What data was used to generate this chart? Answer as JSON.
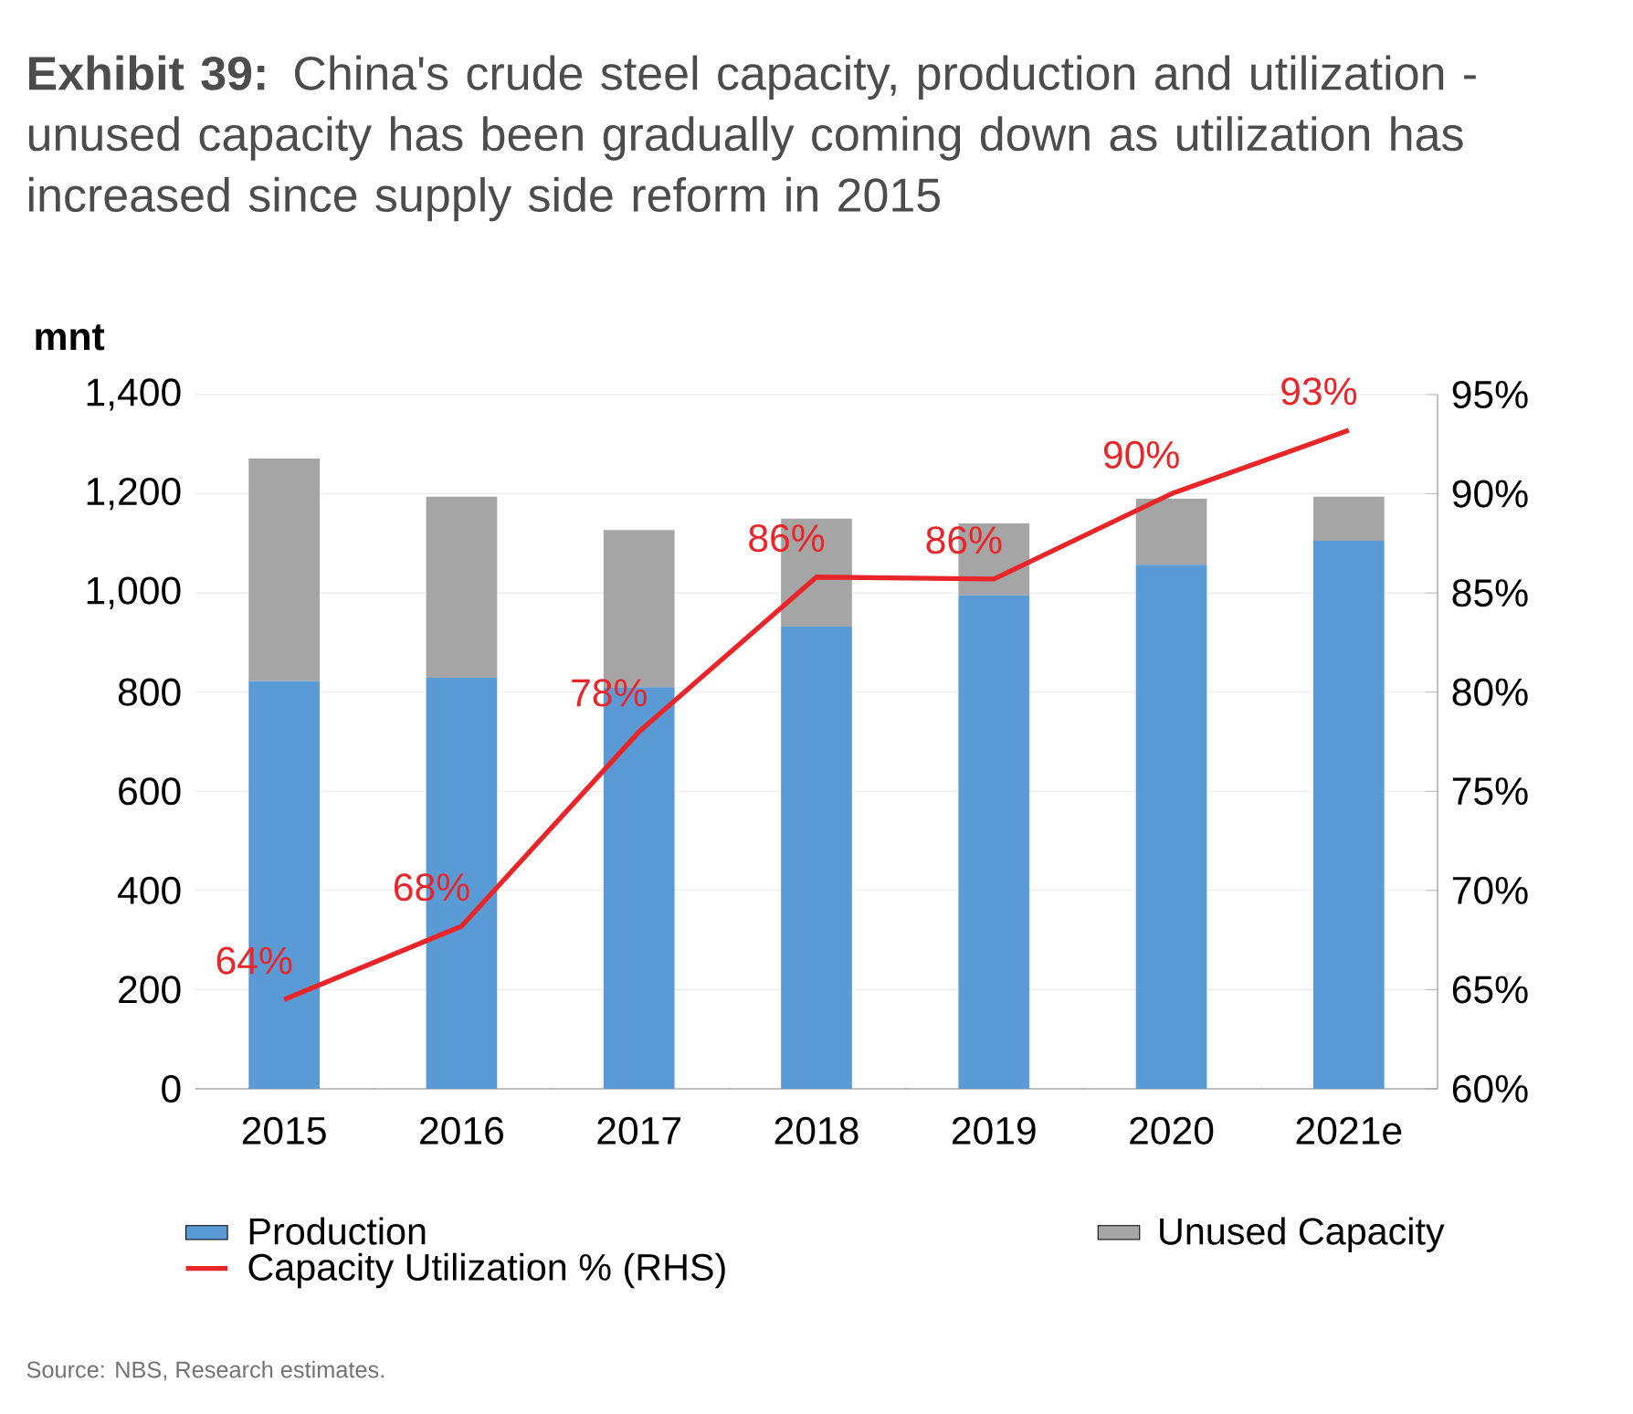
{
  "chart_data": {
    "type": "bar",
    "title": "**Exhibit 39:** China's crude steel capacity, production and utilization - unused capacity has been gradually coming down as utilization has increased since supply side reform in 2015",
    "ylabel": "mnt",
    "categories": [
      "2015",
      "2016",
      "2017",
      "2018",
      "2019",
      "2020",
      "2021e"
    ],
    "stacked": true,
    "series": [
      {
        "name": "Production",
        "color": "#5b9bd5",
        "values": [
          822,
          829,
          810,
          932,
          995,
          1057,
          1105
        ]
      },
      {
        "name": "Unused Capacity",
        "color": "#a5a5a5",
        "values": [
          449,
          365,
          317,
          218,
          145,
          133,
          89
        ]
      },
      {
        "name": "Capacity Utilization % (RHS)",
        "type": "line",
        "axis": "y2",
        "color": "#e8262a",
        "values": [
          64.5,
          68.2,
          78,
          85.8,
          85.7,
          90,
          93.2
        ],
        "value_labels": [
          "64%",
          "68%",
          "78%",
          "86%",
          "86%",
          "90%",
          "93%"
        ]
      }
    ],
    "ylim": [
      0,
      1400
    ],
    "yticks": [
      {
        "value": 0,
        "label": "0"
      },
      {
        "value": 200,
        "label": "200"
      },
      {
        "value": 400,
        "label": "400"
      },
      {
        "value": 600,
        "label": "600"
      },
      {
        "value": 800,
        "label": "800"
      },
      {
        "value": 1000,
        "label": "1,000"
      },
      {
        "value": 1200,
        "label": "1,200"
      },
      {
        "value": 1400,
        "label": "1,400"
      }
    ],
    "y2lim": [
      60,
      95
    ],
    "y2ticks": [
      {
        "value": 60,
        "label": "60%"
      },
      {
        "value": 65,
        "label": "65%"
      },
      {
        "value": 70,
        "label": "70%"
      },
      {
        "value": 75,
        "label": "75%"
      },
      {
        "value": 80,
        "label": "80%"
      },
      {
        "value": 85,
        "label": "85%"
      },
      {
        "value": 90,
        "label": "90%"
      },
      {
        "value": 95,
        "label": "95%"
      }
    ],
    "grid": "y",
    "legend": "bottom",
    "annotations": [
      "Source: NBS, Research estimates."
    ]
  }
}
